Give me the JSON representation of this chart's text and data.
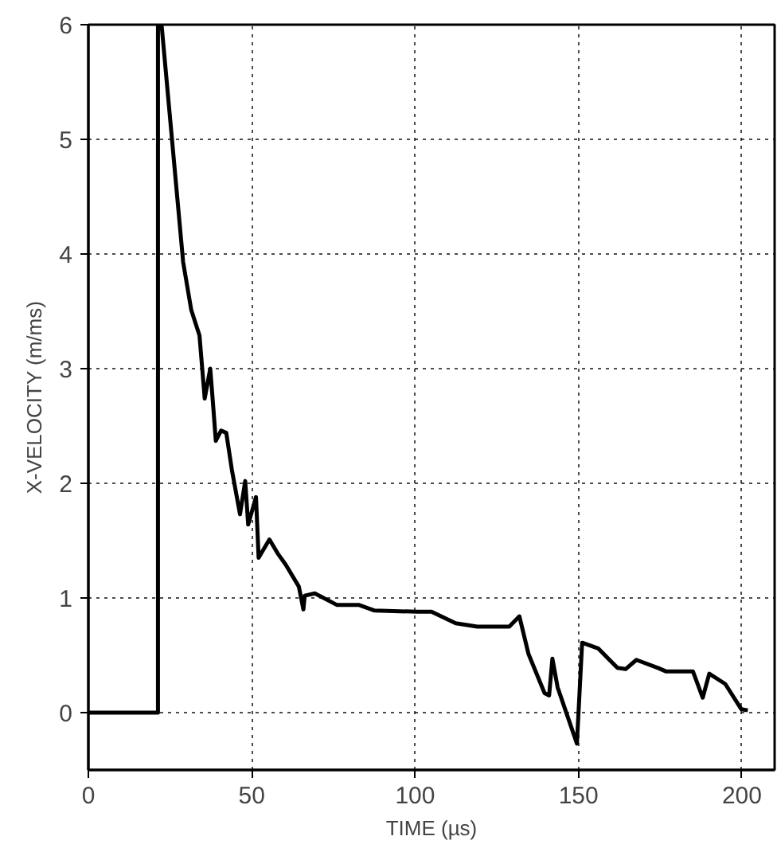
{
  "chart_data": {
    "type": "line",
    "xlabel": "TIME (µs)",
    "ylabel": "X-VELOCITY (m/ms)",
    "xlim": [
      0,
      210
    ],
    "ylim": [
      -0.5,
      6
    ],
    "xticks": [
      0,
      50,
      100,
      150,
      200
    ],
    "yticks": [
      0,
      1,
      2,
      3,
      4,
      5,
      6
    ],
    "grid": true,
    "marker": "none",
    "line_style": "solid",
    "series": [
      {
        "color": "#000000",
        "x": [
          0,
          21.3,
          21.3,
          22.4,
          29,
          31.5,
          34,
          35.6,
          37.3,
          38.1,
          39,
          40.6,
          42.2,
          43.9,
          46.4,
          48,
          48.9,
          51.3,
          52.1,
          55.4,
          57.9,
          60.4,
          64.4,
          65.8,
          66.2,
          69.3,
          76,
          82.7,
          87.6,
          100.8,
          105,
          112.4,
          119,
          128.8,
          131.9,
          134.7,
          139.6,
          141,
          142,
          143.6,
          149.5,
          151.1,
          156,
          161.9,
          164.4,
          167.7,
          174.3,
          176.7,
          185,
          188,
          190,
          194.9,
          199.8,
          201.8
        ],
        "values": [
          0,
          0,
          6,
          6,
          3.93,
          3.51,
          3.29,
          2.74,
          3.0,
          2.71,
          2.37,
          2.46,
          2.44,
          2.12,
          1.73,
          2.02,
          1.64,
          1.88,
          1.35,
          1.51,
          1.39,
          1.29,
          1.1,
          0.9,
          1.02,
          1.04,
          0.94,
          0.94,
          0.89,
          0.88,
          0.88,
          0.78,
          0.75,
          0.75,
          0.84,
          0.51,
          0.17,
          0.15,
          0.47,
          0.22,
          -0.27,
          0.61,
          0.56,
          0.39,
          0.38,
          0.46,
          0.39,
          0.36,
          0.36,
          0.13,
          0.34,
          0.25,
          0.03,
          0.02
        ]
      }
    ]
  }
}
